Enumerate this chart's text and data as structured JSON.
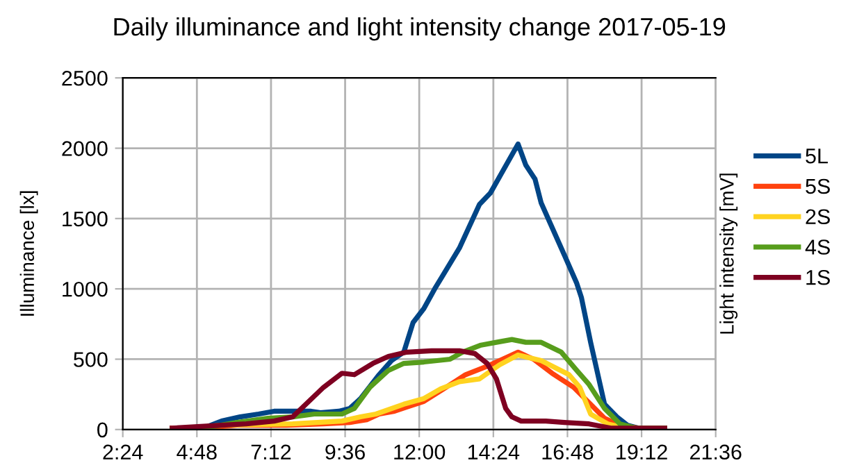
{
  "chart_data": {
    "type": "line",
    "title": "Daily illuminance and light intensity change 2017-05-19",
    "ylabel": "Illuminance [lx]",
    "y2label": "Light intensity [mV]",
    "xlim": [
      2.4,
      21.6
    ],
    "xticks": [
      {
        "value": 2.4,
        "label": "2:24"
      },
      {
        "value": 4.8,
        "label": "4:48"
      },
      {
        "value": 7.2,
        "label": "7:12"
      },
      {
        "value": 9.6,
        "label": "9:36"
      },
      {
        "value": 12,
        "label": "12:00"
      },
      {
        "value": 14.4,
        "label": "14:24"
      },
      {
        "value": 16.8,
        "label": "16:48"
      },
      {
        "value": 19.2,
        "label": "19:12"
      },
      {
        "value": 21.6,
        "label": "21:36"
      }
    ],
    "ylim": [
      0,
      2500
    ],
    "yticks": [
      0,
      500,
      1000,
      1500,
      2000,
      2500
    ],
    "grid": true,
    "legend": "right",
    "marker": "none",
    "line_style": "solid",
    "series": [
      {
        "name": "5L",
        "color": "#004586",
        "x": [
          4.0,
          5.0,
          5.6,
          6.2,
          6.8,
          7.3,
          7.8,
          8.5,
          8.8,
          9.4,
          9.75,
          10.1,
          10.7,
          11.1,
          11.5,
          11.8,
          12.15,
          12.5,
          12.75,
          13.3,
          13.95,
          14.3,
          15.2,
          15.45,
          15.75,
          15.95,
          16.7,
          17.1,
          17.25,
          17.55,
          18.0,
          18.4,
          18.75,
          19.1,
          19.95
        ],
        "values": [
          0,
          10,
          60,
          90,
          110,
          130,
          130,
          130,
          120,
          130,
          150,
          220,
          390,
          490,
          550,
          760,
          860,
          1000,
          1090,
          1290,
          1600,
          1680,
          2030,
          1880,
          1780,
          1610,
          1240,
          1040,
          940,
          620,
          180,
          90,
          30,
          10,
          10
        ]
      },
      {
        "name": "5S",
        "color": "#ff420e",
        "x": [
          4.0,
          5.0,
          6.1,
          7.7,
          8.9,
          9.75,
          10.3,
          10.7,
          11.2,
          11.6,
          12.15,
          12.8,
          13.5,
          14.2,
          14.7,
          15.2,
          15.7,
          16.3,
          17.0,
          17.5,
          18.0,
          18.5,
          19.1,
          19.95
        ],
        "values": [
          10,
          10,
          30,
          30,
          40,
          50,
          70,
          110,
          130,
          160,
          200,
          290,
          390,
          450,
          500,
          550,
          500,
          400,
          300,
          190,
          80,
          30,
          10,
          10
        ]
      },
      {
        "name": "2S",
        "color": "#ffd320",
        "x": [
          4.0,
          5.6,
          7.9,
          9.5,
          10.1,
          10.6,
          11.5,
          12.15,
          12.7,
          13.3,
          13.95,
          14.6,
          15.2,
          15.95,
          16.85,
          17.2,
          17.55,
          18.1,
          18.7,
          19.95
        ],
        "values": [
          0,
          30,
          40,
          60,
          90,
          110,
          180,
          220,
          290,
          340,
          360,
          460,
          530,
          490,
          390,
          300,
          110,
          40,
          10,
          10
        ]
      },
      {
        "name": "4S",
        "color": "#579d1c",
        "x": [
          4.0,
          5.0,
          6.1,
          7.1,
          7.9,
          8.6,
          9.5,
          9.9,
          10.4,
          11.0,
          11.5,
          12.15,
          13.0,
          13.4,
          14.0,
          14.5,
          15.0,
          15.45,
          15.95,
          16.6,
          17.1,
          17.5,
          18.0,
          18.5,
          19.0,
          19.95
        ],
        "values": [
          0,
          10,
          50,
          80,
          90,
          110,
          110,
          150,
          300,
          420,
          470,
          480,
          500,
          550,
          600,
          620,
          640,
          620,
          620,
          550,
          420,
          320,
          150,
          40,
          10,
          10
        ]
      },
      {
        "name": "1S",
        "color": "#7e0021",
        "x": [
          4.0,
          5.6,
          6.4,
          7.3,
          7.9,
          8.9,
          9.5,
          9.9,
          10.5,
          11.0,
          11.6,
          12.4,
          12.7,
          13.3,
          13.8,
          14.2,
          14.5,
          14.8,
          15.0,
          15.3,
          16.1,
          16.7,
          17.5,
          18.2,
          19.95
        ],
        "values": [
          10,
          30,
          40,
          60,
          90,
          300,
          400,
          390,
          470,
          520,
          550,
          560,
          560,
          560,
          540,
          470,
          360,
          150,
          90,
          60,
          60,
          50,
          40,
          10,
          10
        ]
      }
    ]
  }
}
